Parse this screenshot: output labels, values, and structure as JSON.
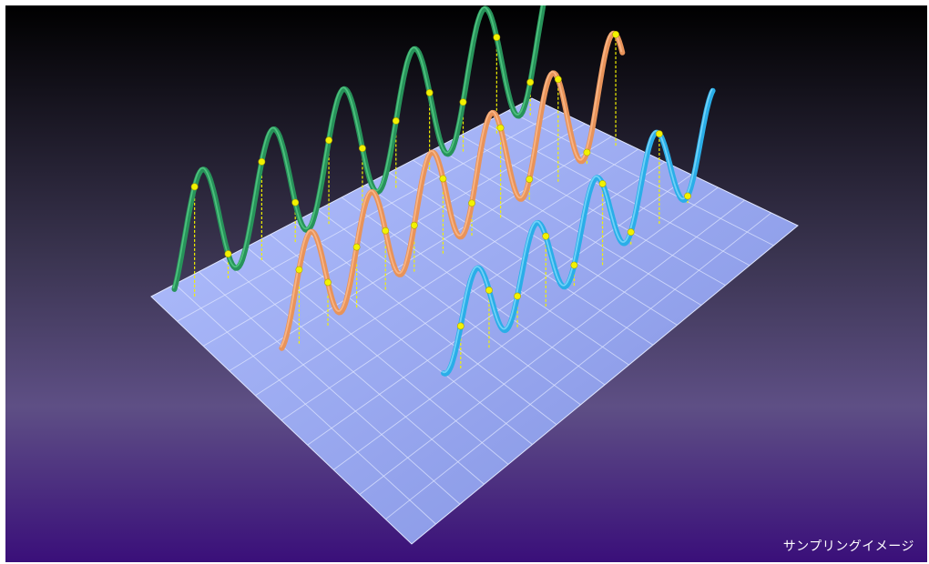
{
  "caption": "サンプリングイメージ",
  "colors": {
    "background_top": "#000000",
    "background_bottom": "#3a0f7a",
    "plane_fill": "#9aaaf0",
    "plane_grid": "#dfe6ff",
    "sample_point": "#f2f200",
    "sample_line": "#f2f200"
  },
  "series": [
    {
      "color": "#27935a",
      "highlight": "#5cd38c"
    },
    {
      "color": "#e8935a",
      "highlight": "#ffc296"
    },
    {
      "color": "#2aaee8",
      "highlight": "#8fe0ff"
    }
  ]
}
